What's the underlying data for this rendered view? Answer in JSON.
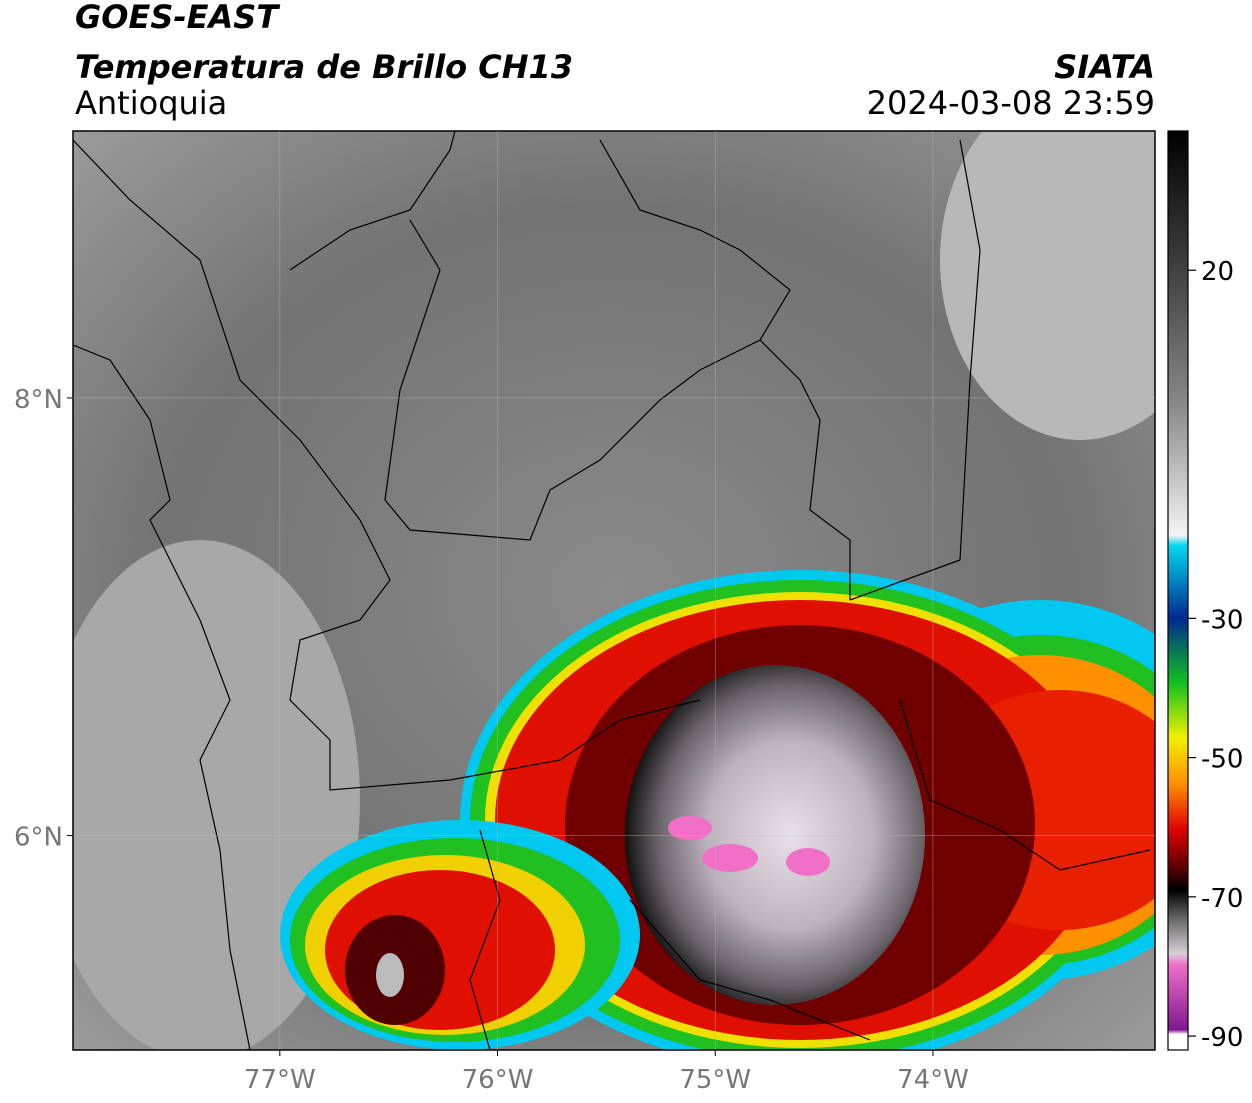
{
  "header": {
    "title": "GOES-EAST",
    "subtitle": "Temperatura de Brillo CH13",
    "region": "Antioquia",
    "source": "SIATA",
    "datetime": "2024-03-08 23:59"
  },
  "map": {
    "xlim": [
      -77.95,
      -72.98
    ],
    "ylim": [
      5.02,
      9.22
    ],
    "xticks": [
      {
        "value": -77,
        "label": "77°W"
      },
      {
        "value": -76,
        "label": "76°W"
      },
      {
        "value": -75,
        "label": "75°W"
      },
      {
        "value": -74,
        "label": "74°W"
      }
    ],
    "yticks": [
      {
        "value": 6,
        "label": "6°N"
      },
      {
        "value": 8,
        "label": "8°N"
      }
    ],
    "grid": true
  },
  "colorbar": {
    "lim": [
      -92,
      40
    ],
    "ticks": [
      20,
      -30,
      -50,
      -70,
      -90
    ]
  }
}
